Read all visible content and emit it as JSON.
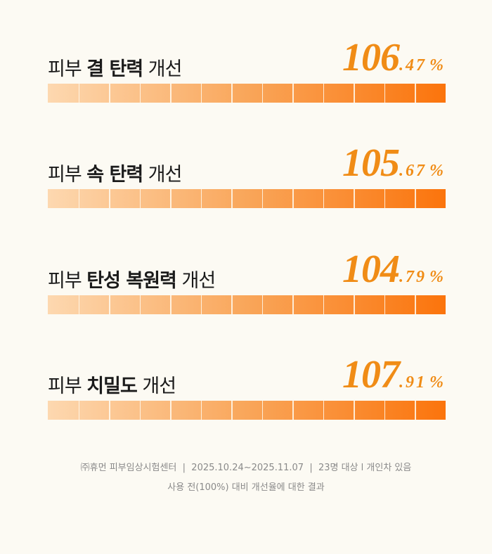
{
  "items": [
    {
      "prefix": "피부",
      "emphasis": "결 탄력",
      "suffix": "개선",
      "value_int": "106",
      "value_dec": ".47",
      "unit": "%"
    },
    {
      "prefix": "피부",
      "emphasis": "속 탄력",
      "suffix": "개선",
      "value_int": "105",
      "value_dec": ".67",
      "unit": "%"
    },
    {
      "prefix": "피부",
      "emphasis": "탄성 복원력",
      "suffix": "개선",
      "value_int": "104",
      "value_dec": ".79",
      "unit": "%"
    },
    {
      "prefix": "피부",
      "emphasis": "치밀도",
      "suffix": "개선",
      "value_int": "107",
      "value_dec": ".91",
      "unit": "%"
    }
  ],
  "footnote": {
    "line1": "㈜휴먼 피부임상시험센터  |  2025.10.24~2025.11.07  |  23명 대상 l 개인차 있음",
    "line2": "사용 전(100%) 대비 개선율에 대한 결과"
  }
}
